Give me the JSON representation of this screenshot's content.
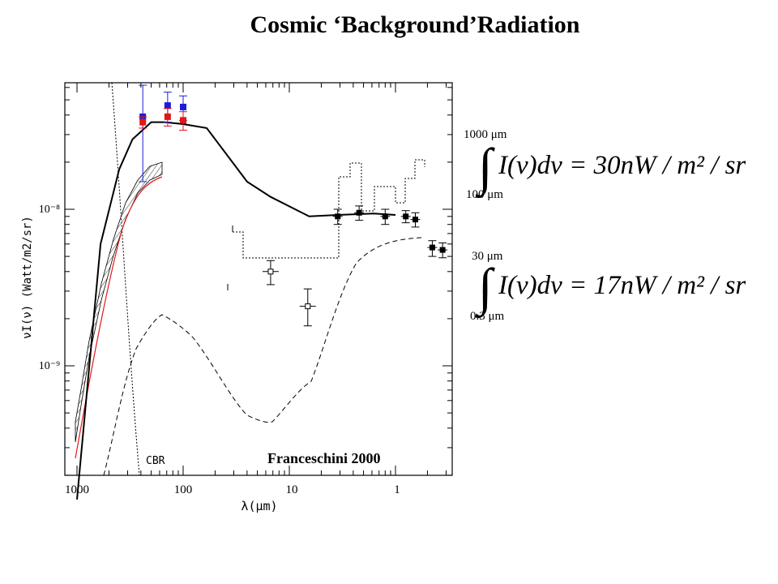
{
  "slide": {
    "title": "Cosmic ‘Background’Radiation"
  },
  "chart_data": {
    "type": "scatter",
    "xlabel": "λ(μm)",
    "ylabel": "νI(ν) (Watt/m2/sr)",
    "x_scale": "log-reversed",
    "x_ticks": [
      "1000",
      "100",
      "10",
      "1"
    ],
    "y_scale": "log",
    "y_ticks": [
      "10⁻⁸",
      "10⁻⁹"
    ],
    "xlim": [
      1000,
      0.3
    ],
    "annotations": [
      "Franceschini 2000",
      "CBR"
    ],
    "colors": {
      "blue": "#1c1cd8",
      "red": "#e01818",
      "black": "#000000"
    },
    "series": [
      {
        "values": [
          {
            "x": 240,
            "y": 3.9e-08,
            "ylo": 1.5e-08,
            "yhi": 6.2e-08
          },
          {
            "x": 140,
            "y": 4.6e-08,
            "ylo": 3.6e-08,
            "yhi": 5.6e-08
          },
          {
            "x": 100,
            "y": 4.5e-08,
            "ylo": 3.7e-08,
            "yhi": 5.3e-08
          }
        ]
      },
      {
        "values": [
          {
            "x": 240,
            "y": 3.6e-08,
            "ylo": 3.3e-08,
            "yhi": 3.9e-08
          },
          {
            "x": 140,
            "y": 3.9e-08,
            "ylo": 3.4e-08,
            "yhi": 4.4e-08
          },
          {
            "x": 100,
            "y": 3.7e-08,
            "ylo": 3.2e-08,
            "yhi": 4.2e-08
          }
        ]
      },
      {
        "values": [
          {
            "x": 3.5,
            "y": 9e-09,
            "ylo": 8e-09,
            "yhi": 1e-08
          },
          {
            "x": 2.2,
            "y": 9.5e-09,
            "ylo": 8.5e-09,
            "yhi": 1.05e-08
          },
          {
            "x": 1.25,
            "y": 9e-09,
            "ylo": 8e-09,
            "yhi": 1e-08
          },
          {
            "x": 0.8,
            "y": 9e-09,
            "ylo": 8.2e-09,
            "yhi": 9.8e-09
          },
          {
            "x": 0.65,
            "y": 8.6e-09,
            "ylo": 7.7e-09,
            "yhi": 9.5e-09
          },
          {
            "x": 0.45,
            "y": 5.7e-09,
            "ylo": 5e-09,
            "yhi": 6.3e-09
          },
          {
            "x": 0.36,
            "y": 5.5e-09,
            "ylo": 4.9e-09,
            "yhi": 6.1e-09
          }
        ]
      },
      {
        "values": [
          {
            "x": 15,
            "y": 4e-09,
            "ylo": 3.3e-09,
            "yhi": 4.7e-09
          },
          {
            "x": 6.7,
            "y": 2.4e-09,
            "ylo": 1.8e-09,
            "yhi": 3.1e-09
          }
        ]
      },
      {
        "values": [
          [
            1000,
            1.4e-10
          ],
          [
            600,
            6e-09
          ],
          [
            400,
            1.8e-08
          ],
          [
            300,
            2.8e-08
          ],
          [
            200,
            3.6e-08
          ],
          [
            150,
            3.6e-08
          ],
          [
            100,
            3.5e-08
          ],
          [
            60,
            3.3e-08
          ],
          [
            25,
            1.5e-08
          ],
          [
            15,
            1.2e-08
          ],
          [
            6.5,
            9e-09
          ],
          [
            3.5,
            9.2e-09
          ],
          [
            1.6,
            9.4e-09
          ],
          [
            1.0,
            9.2e-09
          ]
        ]
      }
    ]
  },
  "equations": [
    {
      "upper": "1000 μm",
      "lower": "100 μm",
      "body": "I(ν)dν = 30nW / m² / sr"
    },
    {
      "upper": "30 μm",
      "lower": "0.3 μm",
      "body": "I(ν)dν = 17nW / m² / sr"
    }
  ]
}
